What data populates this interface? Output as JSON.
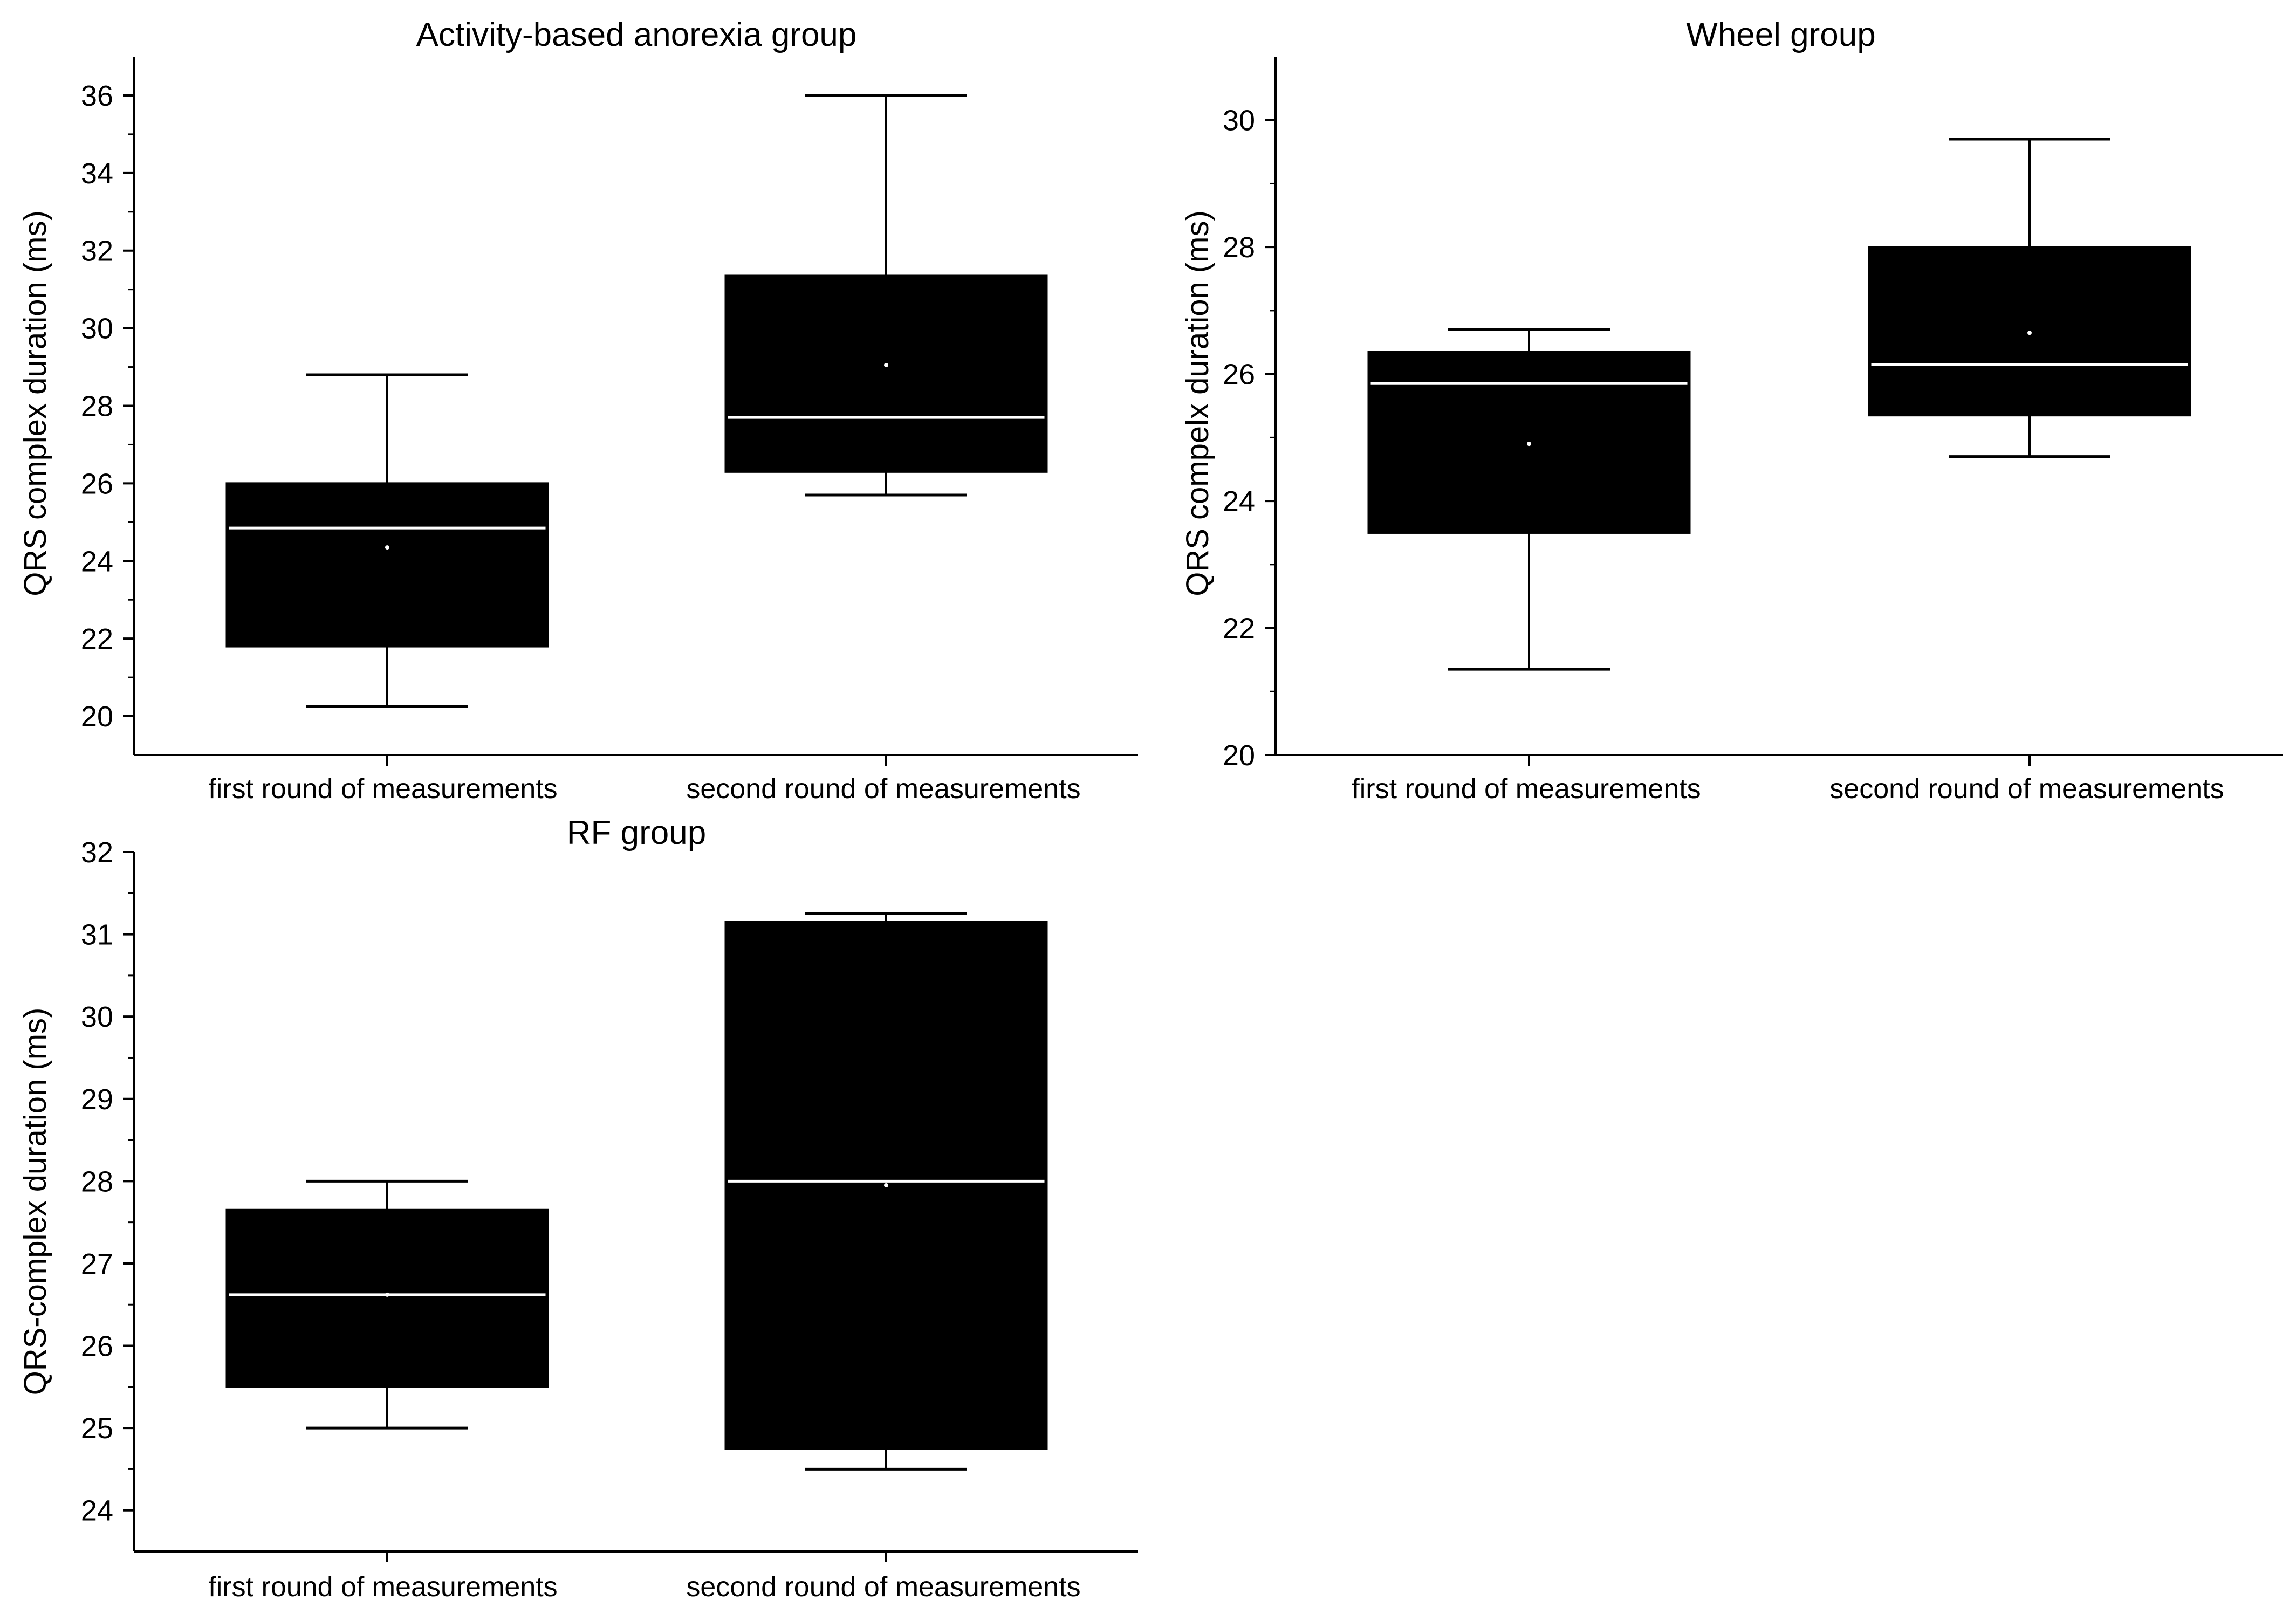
{
  "colors": {
    "box_fill": "#000000",
    "median_line": "#ffffff",
    "axis": "#000000",
    "background": "#ffffff"
  },
  "chart_data": [
    {
      "type": "box",
      "title": "Activity-based anorexia group",
      "xlabel": "",
      "ylabel": "QRS complex duration (ms)",
      "ylim": [
        19,
        37
      ],
      "yticks": [
        20,
        22,
        24,
        26,
        28,
        30,
        32,
        34,
        36
      ],
      "ytick_labels": [
        "20",
        "22",
        "24",
        "26",
        "28",
        "30",
        "32",
        "34",
        "36"
      ],
      "minor_ticks": true,
      "categories": [
        "first round of measurements",
        "second round of measurements"
      ],
      "boxes": [
        {
          "whisker_low": 20.25,
          "q1": 21.8,
          "median": 24.85,
          "q3": 26.0,
          "whisker_high": 28.8,
          "mean": 24.35
        },
        {
          "whisker_low": 25.7,
          "q1": 26.3,
          "median": 27.7,
          "q3": 31.35,
          "whisker_high": 36.0,
          "mean": 29.05
        }
      ]
    },
    {
      "type": "box",
      "title": "Wheel group",
      "xlabel": "",
      "ylabel": "QRS compelx duration (ms)",
      "ylim": [
        20,
        31
      ],
      "yticks": [
        20,
        22,
        24,
        26,
        28,
        30
      ],
      "ytick_labels": [
        "20",
        "22",
        "24",
        "26",
        "28",
        "30"
      ],
      "minor_ticks": true,
      "categories": [
        "first round of measurements",
        "second round of measurements"
      ],
      "boxes": [
        {
          "whisker_low": 21.35,
          "q1": 23.5,
          "median": 25.85,
          "q3": 26.35,
          "whisker_high": 26.7,
          "mean": 24.9
        },
        {
          "whisker_low": 24.7,
          "q1": 25.35,
          "median": 26.15,
          "q3": 28.0,
          "whisker_high": 29.7,
          "mean": 26.65
        }
      ]
    },
    {
      "type": "box",
      "title": "RF group",
      "xlabel": "",
      "ylabel": "QRS-complex duration (ms)",
      "ylim": [
        23.5,
        32
      ],
      "yticks": [
        24,
        25,
        26,
        27,
        28,
        29,
        30,
        31,
        32
      ],
      "ytick_labels": [
        "24",
        "25",
        "26",
        "27",
        "28",
        "29",
        "30",
        "31",
        "32"
      ],
      "minor_ticks": true,
      "categories": [
        "first round of measurements",
        "second round of measurements"
      ],
      "boxes": [
        {
          "whisker_low": 25.0,
          "q1": 25.5,
          "median": 26.62,
          "q3": 27.65,
          "whisker_high": 28.0,
          "mean": 26.62
        },
        {
          "whisker_low": 24.5,
          "q1": 24.75,
          "median": 28.0,
          "q3": 31.15,
          "whisker_high": 31.25,
          "mean": 27.95
        }
      ]
    }
  ]
}
